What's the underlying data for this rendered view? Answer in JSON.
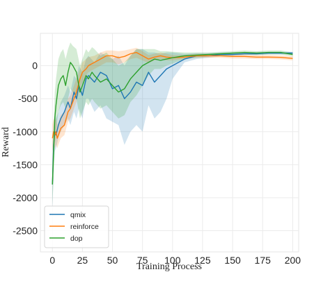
{
  "chart_data": {
    "type": "line",
    "xlabel": "Training Process",
    "ylabel": "Reward",
    "xlim": [
      -10,
      205
    ],
    "ylim": [
      -2820,
      490
    ],
    "x_ticks": [
      0,
      25,
      50,
      75,
      100,
      125,
      150,
      175,
      200
    ],
    "y_ticks": [
      0,
      -500,
      -1000,
      -1500,
      -2000,
      -2500
    ],
    "grid": true,
    "legend_position": "lower-left",
    "series": [
      {
        "name": "qmix",
        "color": "#1f77b4",
        "x": [
          0,
          1,
          2,
          3,
          5,
          7,
          10,
          13,
          15,
          18,
          20,
          22,
          25,
          28,
          30,
          35,
          40,
          45,
          50,
          55,
          60,
          65,
          70,
          75,
          80,
          85,
          90,
          95,
          100,
          110,
          120,
          130,
          140,
          150,
          160,
          170,
          180,
          190,
          200
        ],
        "y": [
          -1800,
          -1200,
          -1000,
          -1050,
          -900,
          -800,
          -700,
          -550,
          -650,
          -400,
          -500,
          -300,
          -450,
          -200,
          -150,
          -250,
          -100,
          -150,
          -350,
          -300,
          -500,
          -400,
          -250,
          -300,
          -100,
          -250,
          -150,
          -50,
          0,
          100,
          150,
          150,
          170,
          170,
          180,
          180,
          190,
          190,
          190
        ],
        "band_low": [
          -2200,
          -1550,
          -1300,
          -1250,
          -1100,
          -1000,
          -900,
          -800,
          -900,
          -700,
          -800,
          -650,
          -800,
          -500,
          -500,
          -700,
          -600,
          -800,
          -850,
          -900,
          -1200,
          -1000,
          -900,
          -1000,
          -600,
          -800,
          -700,
          -500,
          -200,
          50,
          100,
          120,
          140,
          150,
          160,
          160,
          170,
          170,
          170
        ],
        "band_high": [
          -1500,
          -950,
          -700,
          -800,
          -700,
          -550,
          -450,
          -300,
          -400,
          -150,
          -200,
          0,
          -100,
          100,
          150,
          50,
          200,
          150,
          100,
          150,
          0,
          150,
          250,
          250,
          200,
          200,
          180,
          200,
          200,
          180,
          190,
          190,
          200,
          200,
          200,
          210,
          210,
          210,
          210
        ]
      },
      {
        "name": "reinforce",
        "color": "#ff7f0e",
        "x": [
          0,
          1,
          2,
          3,
          4,
          5,
          7,
          10,
          13,
          15,
          18,
          20,
          23,
          25,
          28,
          30,
          35,
          40,
          45,
          50,
          55,
          60,
          65,
          70,
          75,
          80,
          85,
          90,
          95,
          100,
          110,
          120,
          130,
          140,
          150,
          160,
          170,
          180,
          190,
          200
        ],
        "y": [
          -1100,
          -1000,
          -1050,
          -1000,
          -1100,
          -1050,
          -950,
          -900,
          -700,
          -650,
          -500,
          -400,
          -200,
          -100,
          -50,
          0,
          50,
          100,
          150,
          150,
          120,
          140,
          180,
          200,
          150,
          100,
          130,
          150,
          130,
          120,
          130,
          150,
          150,
          150,
          140,
          140,
          130,
          130,
          125,
          110
        ],
        "band_low": [
          -1300,
          -1200,
          -1250,
          -1200,
          -1250,
          -1200,
          -1100,
          -1050,
          -850,
          -800,
          -650,
          -550,
          -350,
          -250,
          -150,
          -100,
          -50,
          0,
          50,
          50,
          20,
          50,
          100,
          120,
          80,
          40,
          80,
          100,
          80,
          80,
          100,
          120,
          120,
          120,
          110,
          110,
          100,
          100,
          95,
          80
        ],
        "band_high": [
          -900,
          -800,
          -850,
          -800,
          -900,
          -850,
          -750,
          -700,
          -500,
          -450,
          -300,
          -200,
          -50,
          50,
          100,
          130,
          150,
          200,
          230,
          230,
          220,
          230,
          250,
          270,
          220,
          160,
          180,
          200,
          180,
          160,
          160,
          180,
          180,
          180,
          170,
          170,
          160,
          160,
          155,
          140
        ]
      },
      {
        "name": "dop",
        "color": "#2ca02c",
        "x": [
          0,
          1,
          2,
          3,
          5,
          7,
          9,
          11,
          13,
          15,
          17,
          20,
          23,
          25,
          28,
          30,
          33,
          35,
          40,
          45,
          50,
          55,
          60,
          65,
          70,
          75,
          80,
          85,
          90,
          95,
          100,
          110,
          120,
          130,
          140,
          150,
          160,
          170,
          180,
          190,
          200
        ],
        "y": [
          -1800,
          -1300,
          -800,
          -600,
          -300,
          -200,
          -150,
          -300,
          -100,
          50,
          0,
          -100,
          -400,
          -300,
          -150,
          -200,
          -100,
          -150,
          -250,
          -200,
          -300,
          -400,
          -350,
          -200,
          -100,
          0,
          50,
          100,
          80,
          100,
          120,
          150,
          160,
          170,
          180,
          190,
          200,
          190,
          200,
          200,
          170
        ],
        "band_low": [
          -2100,
          -1700,
          -1200,
          -1000,
          -700,
          -600,
          -550,
          -650,
          -500,
          -350,
          -400,
          -500,
          -800,
          -700,
          -550,
          -600,
          -500,
          -550,
          -650,
          -600,
          -700,
          -800,
          -750,
          -550,
          -450,
          -300,
          -150,
          -50,
          -50,
          0,
          30,
          100,
          120,
          140,
          150,
          160,
          170,
          160,
          170,
          170,
          140
        ],
        "band_high": [
          -1500,
          -900,
          -400,
          -200,
          100,
          200,
          250,
          100,
          250,
          350,
          300,
          250,
          0,
          100,
          250,
          200,
          280,
          250,
          150,
          200,
          100,
          0,
          50,
          150,
          250,
          250,
          250,
          250,
          220,
          220,
          210,
          200,
          200,
          200,
          210,
          220,
          230,
          220,
          230,
          230,
          200
        ]
      }
    ]
  }
}
